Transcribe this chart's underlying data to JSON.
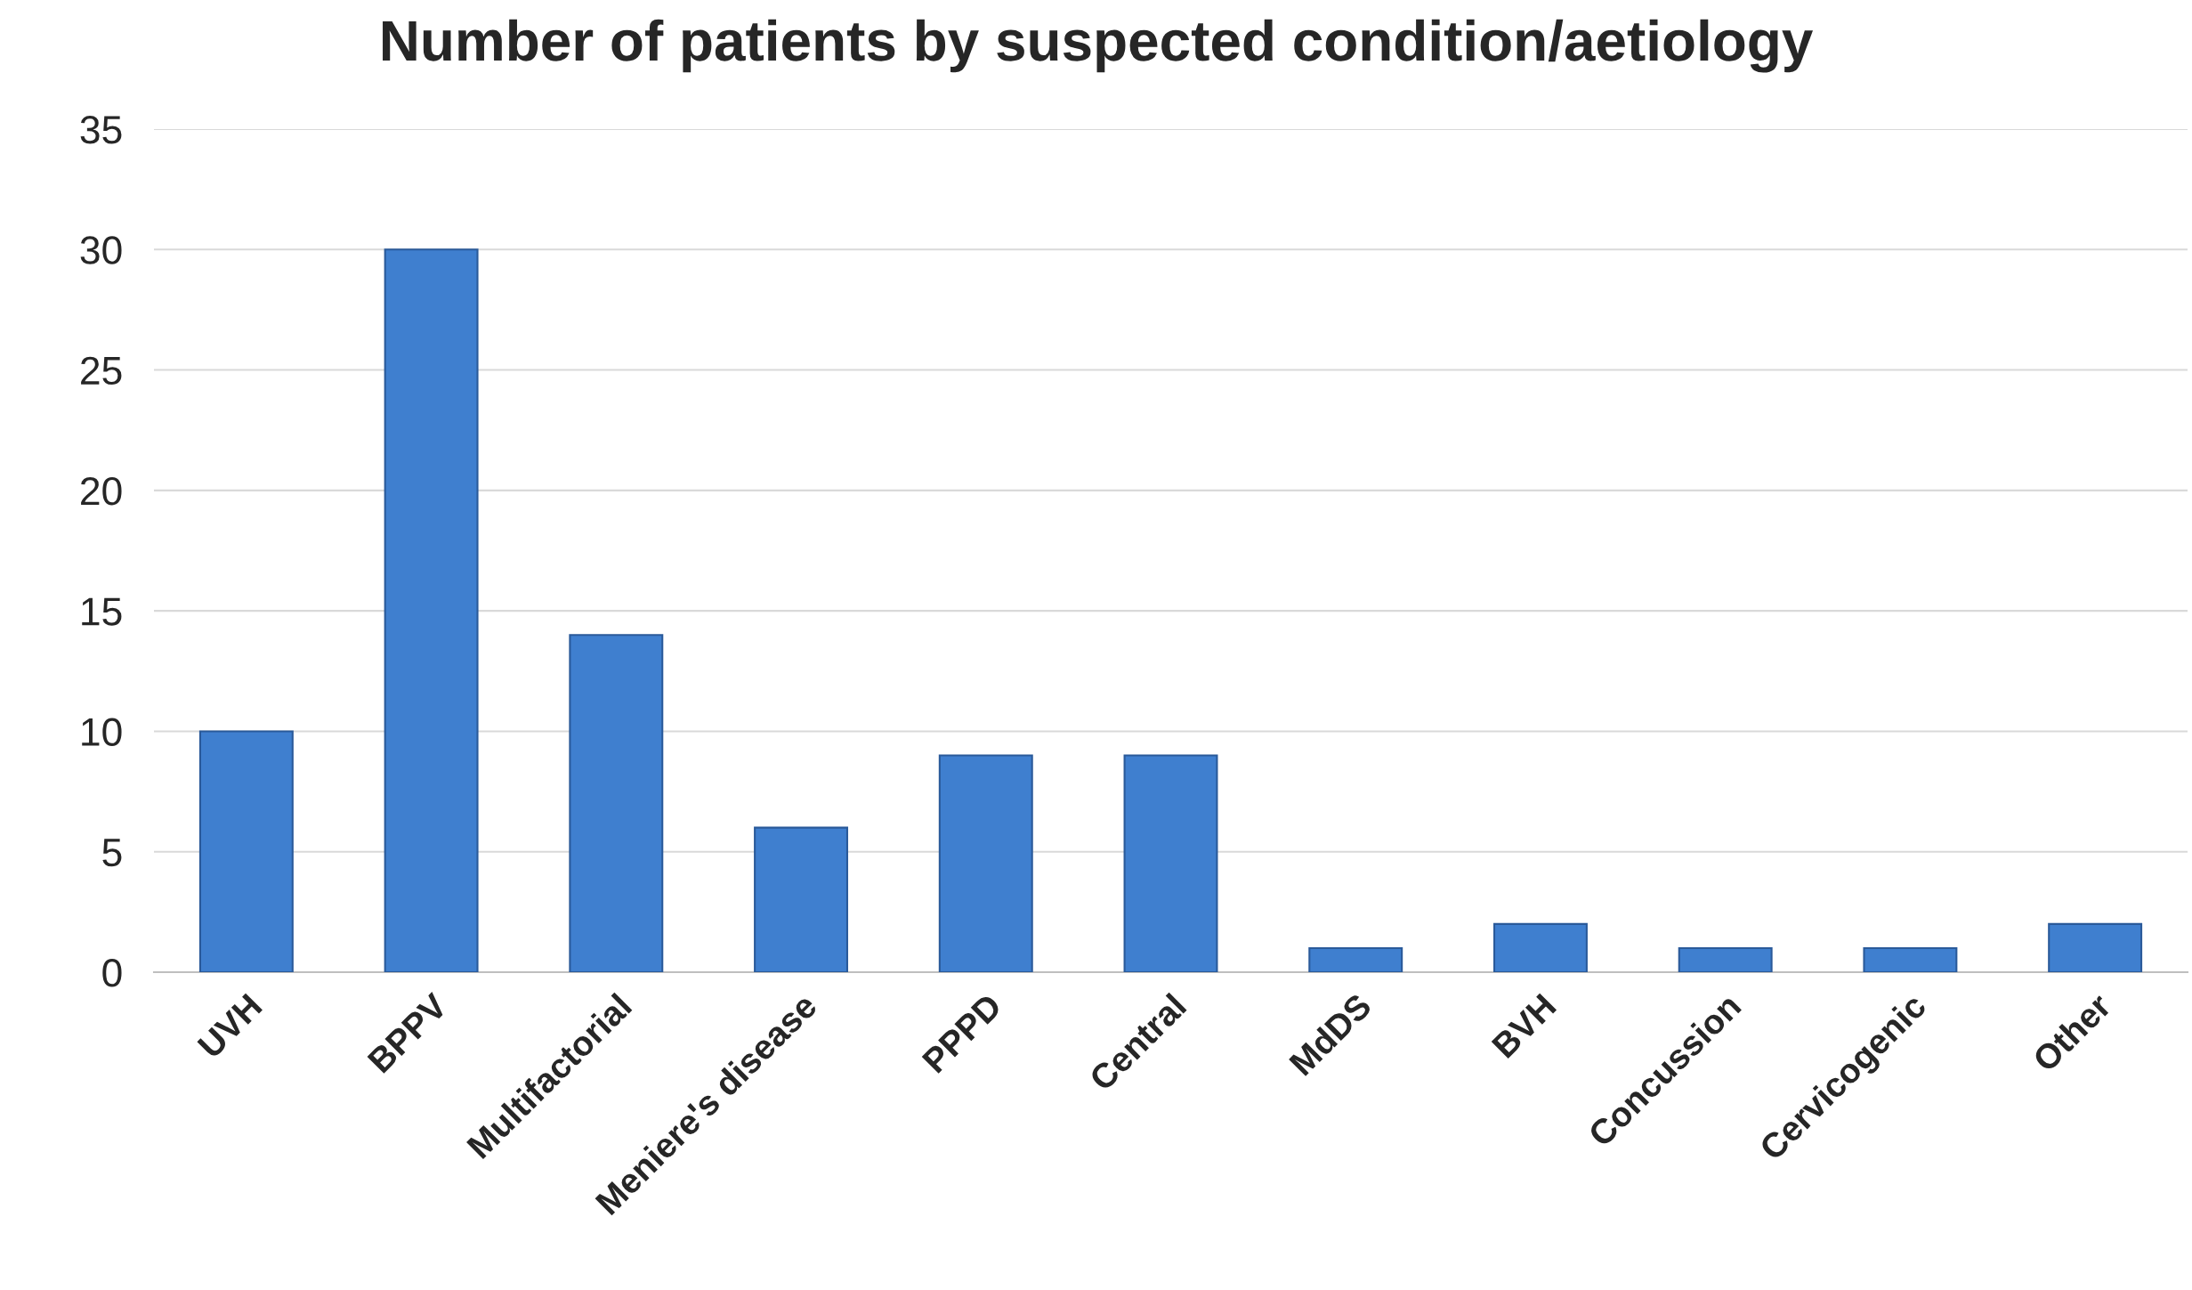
{
  "chart_data": {
    "type": "bar",
    "title": "Number of patients by suspected condition/aetiology",
    "categories": [
      "UVH",
      "BPPV",
      "Multifactorial",
      "Meniere's disease",
      "PPPD",
      "Central",
      "MdDS",
      "BVH",
      "Concussion",
      "Cervicogenic",
      "Other"
    ],
    "values": [
      10,
      30,
      14,
      6,
      9,
      9,
      1,
      2,
      1,
      1,
      2
    ],
    "color": "#3f7fcf",
    "ylim": [
      0,
      35
    ],
    "yticks": [
      0,
      5,
      10,
      15,
      20,
      25,
      30,
      35
    ],
    "grid": "y"
  }
}
